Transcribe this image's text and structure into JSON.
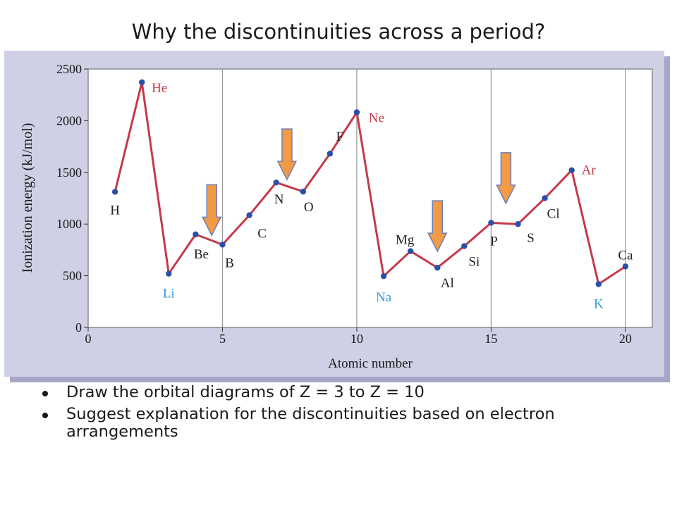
{
  "slide": {
    "title": "Why the discontinuities across a period?",
    "bullets": [
      "Draw the orbital diagrams of Z = 3 to Z = 10",
      "Suggest explanation for the discontinuities based on electron arrangements"
    ]
  },
  "colors": {
    "line": "#c53a4a",
    "point": "#2a4fa8",
    "noble_gas_label": "#c53a4a",
    "alkali_label": "#3a9bd5",
    "default_label": "#222222",
    "arrow": "#f29a45",
    "arrow_outline": "#6d7fb8",
    "panel": "#cfd0e6",
    "plot_background": "#ffffff"
  },
  "chart_data": {
    "type": "line",
    "title": "",
    "xlabel": "Atomic number",
    "ylabel": "Ionization energy (kJ/mol)",
    "xlim": [
      0,
      21
    ],
    "ylim": [
      0,
      2500
    ],
    "xticks": [
      0,
      5,
      10,
      15,
      20
    ],
    "yticks": [
      0,
      500,
      1000,
      1500,
      2000,
      2500
    ],
    "grid": "vertical lines at x = 5, 10, 15",
    "series": [
      {
        "x": [
          1,
          2,
          3,
          4,
          5,
          6,
          7,
          8,
          9,
          10,
          11,
          12,
          13,
          14,
          15,
          16,
          17,
          18,
          19,
          20
        ],
        "values": [
          1312,
          2372,
          520,
          900,
          801,
          1086,
          1402,
          1314,
          1681,
          2081,
          496,
          738,
          578,
          787,
          1012,
          1000,
          1251,
          1521,
          419,
          590
        ],
        "labels": [
          "H",
          "He",
          "Li",
          "Be",
          "B",
          "C",
          "N",
          "O",
          "F",
          "Ne",
          "Na",
          "Mg",
          "Al",
          "Si",
          "P",
          "S",
          "Cl",
          "Ar",
          "K",
          "Ca"
        ],
        "label_groups": [
          "default",
          "noble",
          "alkali",
          "default",
          "default",
          "default",
          "default",
          "default",
          "default",
          "noble",
          "alkali",
          "default",
          "default",
          "default",
          "default",
          "default",
          "default",
          "noble",
          "alkali",
          "default"
        ]
      }
    ],
    "annotations": [
      {
        "type": "down-arrow",
        "near": "Be-B"
      },
      {
        "type": "down-arrow",
        "near": "N-O"
      },
      {
        "type": "down-arrow",
        "near": "Mg-Al"
      },
      {
        "type": "down-arrow",
        "near": "P-S"
      }
    ]
  }
}
